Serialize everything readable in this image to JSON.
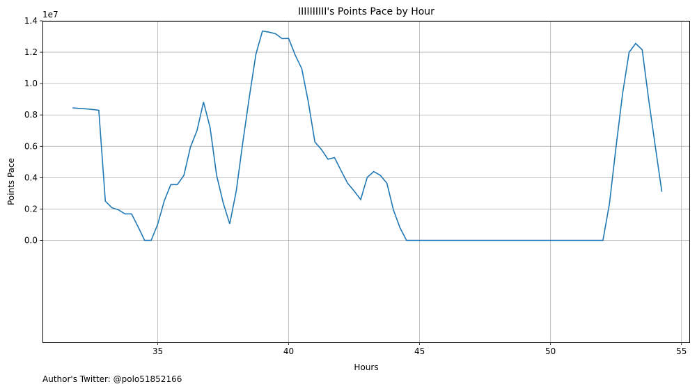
{
  "chart_data": {
    "type": "line",
    "title": "IIIIIIIIII's Points Pace by Hour",
    "xlabel": "Hours",
    "ylabel": "Points Pace",
    "y_offset_label": "1e7",
    "xlim": [
      30.6,
      55.3
    ],
    "ylim": [
      -6500000,
      14000000
    ],
    "x_ticks": [
      35,
      40,
      45,
      50,
      55
    ],
    "y_ticks": [
      0,
      2000000,
      4000000,
      6000000,
      8000000,
      10000000,
      12000000,
      14000000
    ],
    "y_tick_labels": [
      "0.0",
      "0.2",
      "0.4",
      "0.6",
      "0.8",
      "1.0",
      "1.2",
      "1.4"
    ],
    "grid": true,
    "line_color": "#1f77b4",
    "series": [
      {
        "x": [
          31.75,
          32.0,
          32.25,
          32.5,
          32.75,
          33.0,
          33.25,
          33.5,
          33.75,
          34.0,
          34.25,
          34.5,
          34.75,
          35.0,
          35.25,
          35.5,
          35.75,
          36.0,
          36.25,
          36.5,
          36.75,
          37.0,
          37.25,
          37.5,
          37.75,
          38.0,
          38.25,
          38.5,
          38.75,
          39.0,
          39.25,
          39.5,
          39.75,
          40.0,
          40.25,
          40.5,
          40.75,
          41.0,
          41.25,
          41.5,
          41.75,
          42.0,
          42.25,
          42.5,
          42.75,
          43.0,
          43.25,
          43.5,
          43.75,
          44.0,
          44.25,
          44.5,
          44.75,
          45.0,
          45.5,
          46.0,
          46.5,
          47.0,
          47.5,
          48.0,
          48.5,
          49.0,
          49.5,
          50.0,
          50.5,
          51.0,
          51.5,
          52.0,
          52.25,
          52.5,
          52.75,
          53.0,
          53.25,
          53.5,
          53.75,
          54.0,
          54.25
        ],
        "y": [
          8450000,
          8420000,
          8390000,
          8350000,
          8300000,
          2500000,
          2080000,
          1950000,
          1690000,
          1690000,
          870000,
          0,
          0,
          1030000,
          2520000,
          3560000,
          3560000,
          4150000,
          5950000,
          7000000,
          8820000,
          7200000,
          4150000,
          2400000,
          1050000,
          3150000,
          6250000,
          9150000,
          11870000,
          13350000,
          13280000,
          13180000,
          12870000,
          12880000,
          11820000,
          10950000,
          8820000,
          6280000,
          5800000,
          5180000,
          5280000,
          4450000,
          3650000,
          3150000,
          2600000,
          4020000,
          4390000,
          4150000,
          3650000,
          1950000,
          810000,
          0,
          0,
          0,
          0,
          0,
          0,
          0,
          0,
          0,
          0,
          0,
          0,
          0,
          0,
          0,
          0,
          0,
          2350000,
          5950000,
          9350000,
          12000000,
          12560000,
          12160000,
          8950000,
          6000000,
          3100000
        ]
      }
    ]
  },
  "footer": {
    "text": "Author's Twitter: @polo51852166"
  }
}
